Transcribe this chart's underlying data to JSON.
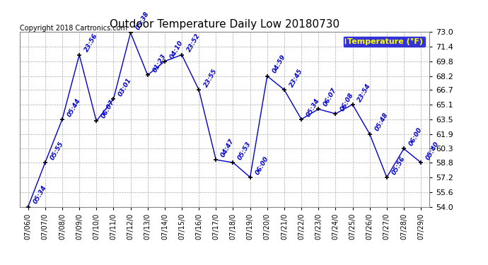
{
  "title": "Outdoor Temperature Daily Low 20180730",
  "copyright": "Copyright 2018 Cartronics.com",
  "legend_label": "Temperature (°F)",
  "x_labels": [
    "07/06/0",
    "07/07/0",
    "07/08/0",
    "07/09/0",
    "07/10/0",
    "07/11/0",
    "07/12/0",
    "07/13/0",
    "07/14/0",
    "07/15/0",
    "07/16/0",
    "07/17/0",
    "07/18/0",
    "07/19/0",
    "07/20/0",
    "07/21/0",
    "07/22/0",
    "07/23/0",
    "07/24/0",
    "07/25/0",
    "07/26/0",
    "07/27/0",
    "07/28/0",
    "07/29/0"
  ],
  "y_values": [
    54.0,
    58.8,
    63.5,
    70.5,
    63.3,
    65.7,
    72.9,
    68.3,
    69.8,
    70.5,
    66.7,
    59.1,
    58.8,
    57.2,
    68.2,
    66.7,
    63.5,
    64.6,
    64.1,
    65.1,
    61.9,
    57.2,
    60.3,
    58.8
  ],
  "annotations": [
    "05:34",
    "05:55",
    "05:44",
    "23:56",
    "06:07",
    "03:01",
    "05:38",
    "01:23",
    "04:10",
    "23:52",
    "23:55",
    "04:47",
    "05:53",
    "06:00",
    "04:59",
    "23:45",
    "05:34",
    "06:07",
    "06:08",
    "23:54",
    "05:48",
    "05:56",
    "06:00",
    "05:40"
  ],
  "ylim": [
    54.0,
    73.0
  ],
  "yticks": [
    54.0,
    55.6,
    57.2,
    58.8,
    60.3,
    61.9,
    63.5,
    65.1,
    66.7,
    68.2,
    69.8,
    71.4,
    73.0
  ],
  "line_color": "#0000cc",
  "marker_color": "#000000",
  "bg_color": "#ffffff",
  "grid_color": "#aaaaaa",
  "title_color": "#000000",
  "legend_bg": "#0000cc",
  "legend_fg": "#ffff00",
  "anno_color": "#0000cc",
  "copyright_color": "#000000",
  "anno_rotation": 60,
  "anno_fontsize": 6.5,
  "title_fontsize": 11,
  "copyright_fontsize": 7,
  "tick_fontsize": 8,
  "xtick_fontsize": 7
}
